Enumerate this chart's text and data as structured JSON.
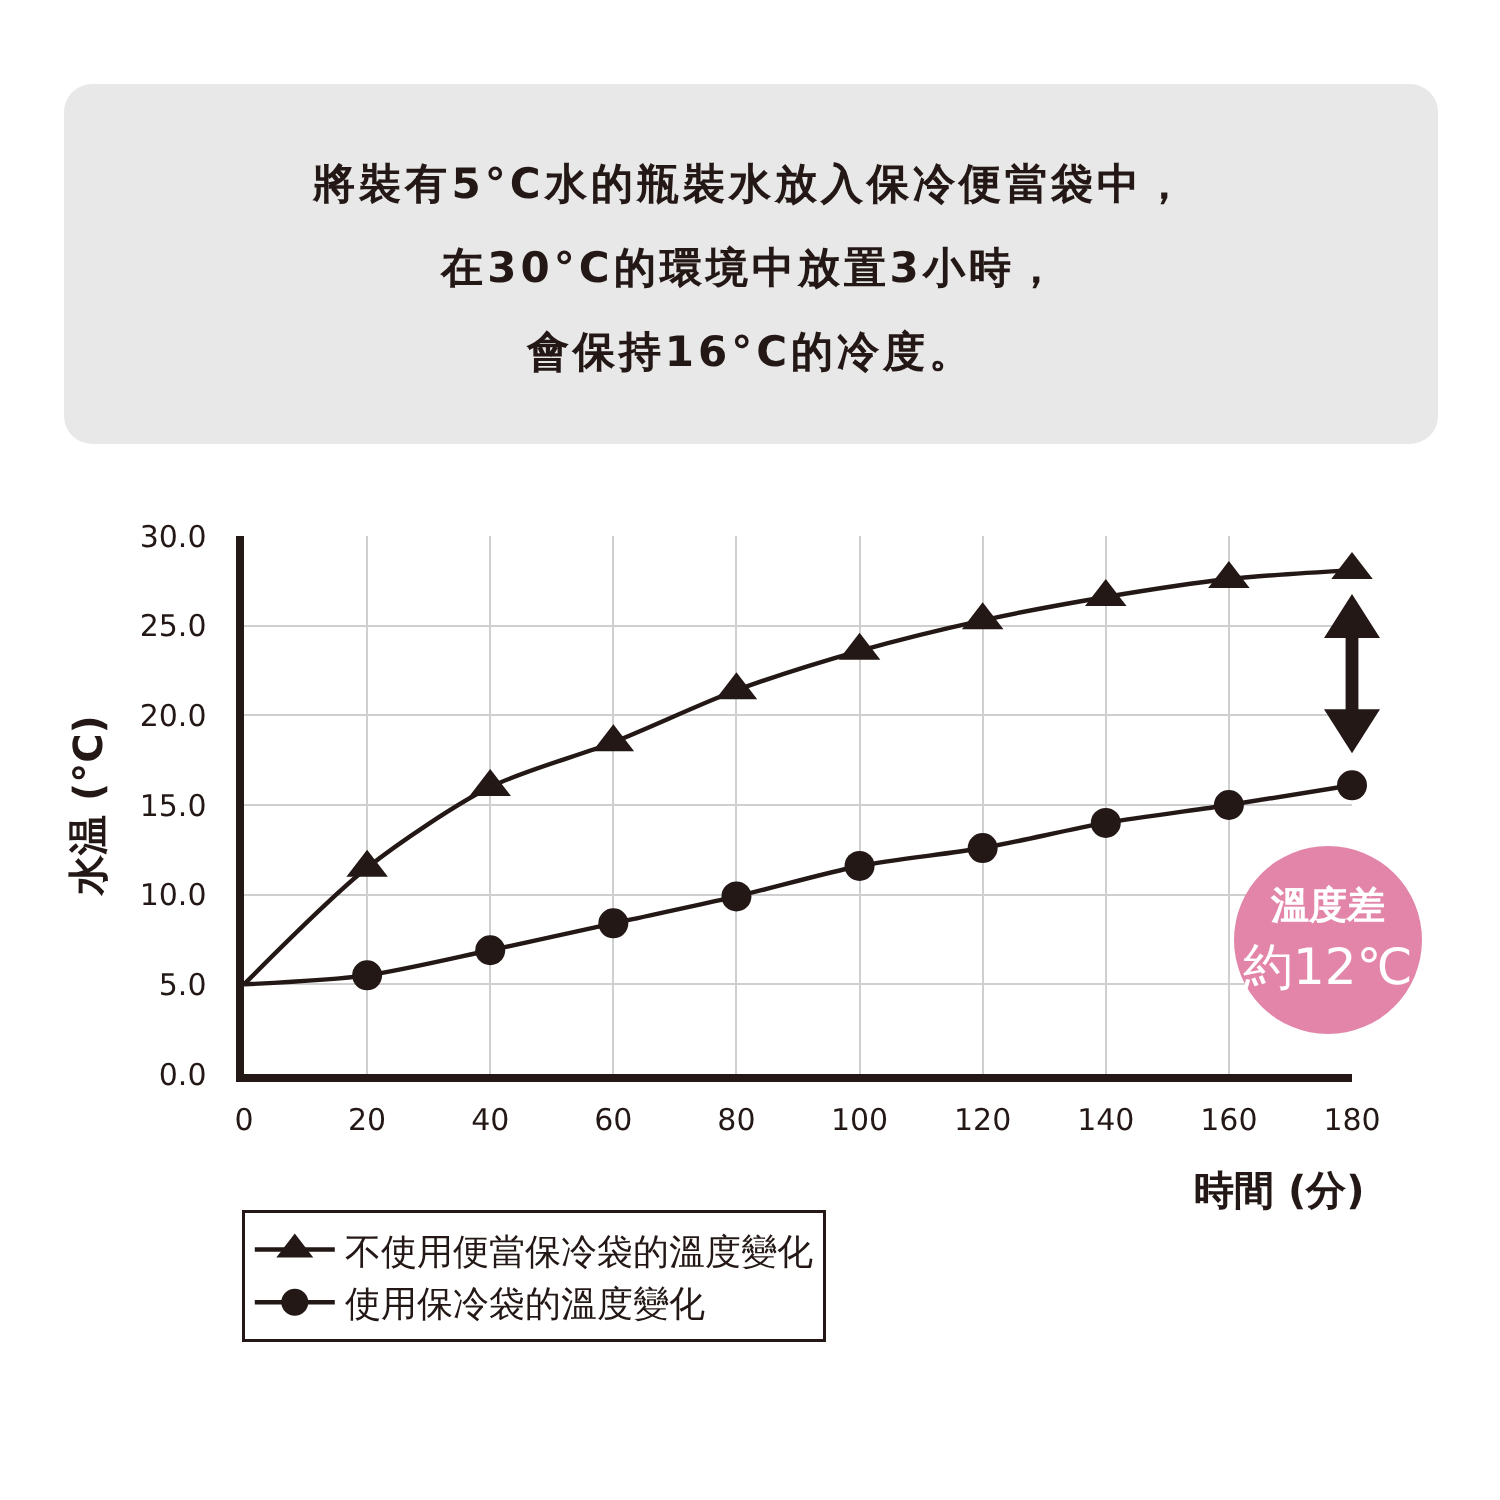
{
  "chart_data": {
    "type": "line",
    "title": "將裝有5°C水的瓶裝水放入保冷便當袋中，在30°C的環境中放置3小時，會保持16°C的冷度。",
    "xlabel": "時間 (分)",
    "ylabel": "水温 (°C)",
    "x": [
      0,
      20,
      40,
      60,
      80,
      100,
      120,
      140,
      160,
      180
    ],
    "series": [
      {
        "name": "不使用便當保冷袋的溫度變化",
        "color": "#231815",
        "marker": "triangle",
        "values": [
          5.0,
          11.5,
          16.0,
          18.5,
          21.4,
          23.6,
          25.3,
          26.6,
          27.6,
          28.1
        ]
      },
      {
        "name": "使用保冷袋的溫度變化",
        "color": "#231815",
        "marker": "circle",
        "values": [
          5.0,
          5.5,
          6.9,
          8.4,
          9.9,
          11.6,
          12.6,
          14.0,
          15.0,
          16.1
        ]
      }
    ],
    "xlim": [
      0,
      180
    ],
    "xticks": [
      0,
      20,
      40,
      60,
      80,
      100,
      120,
      140,
      160,
      180
    ],
    "ylim": [
      0,
      30
    ],
    "yticks": [
      {
        "value": 0,
        "label": "0.0"
      },
      {
        "value": 5,
        "label": "5.0"
      },
      {
        "value": 10,
        "label": "10.0"
      },
      {
        "value": 15,
        "label": "15.0"
      },
      {
        "value": 20,
        "label": "20.0"
      },
      {
        "value": 25,
        "label": "25.0"
      },
      {
        "value": 30,
        "label": "30.0"
      }
    ],
    "grid": true,
    "legend": "bottom left",
    "line_style": "solid",
    "annotations": [
      "溫度差",
      "約12℃"
    ]
  }
}
